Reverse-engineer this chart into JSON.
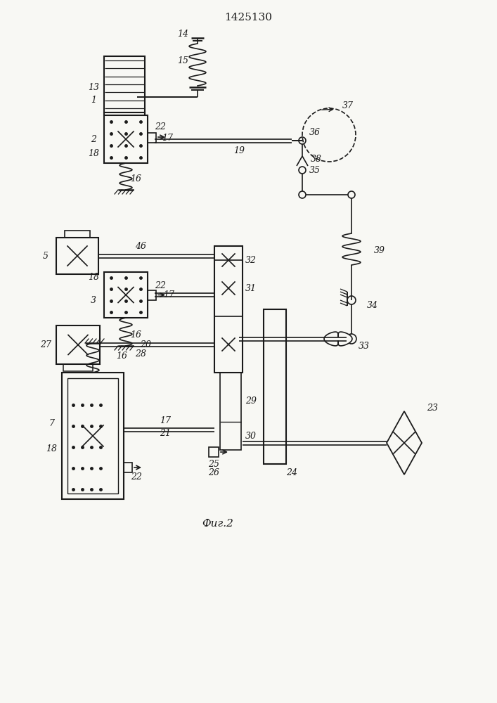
{
  "title": "1425130",
  "fig_label": "Фиг.2",
  "bg_color": "#f8f8f4",
  "line_color": "#1a1a1a",
  "figsize": [
    7.07,
    10.0
  ],
  "dpi": 100
}
